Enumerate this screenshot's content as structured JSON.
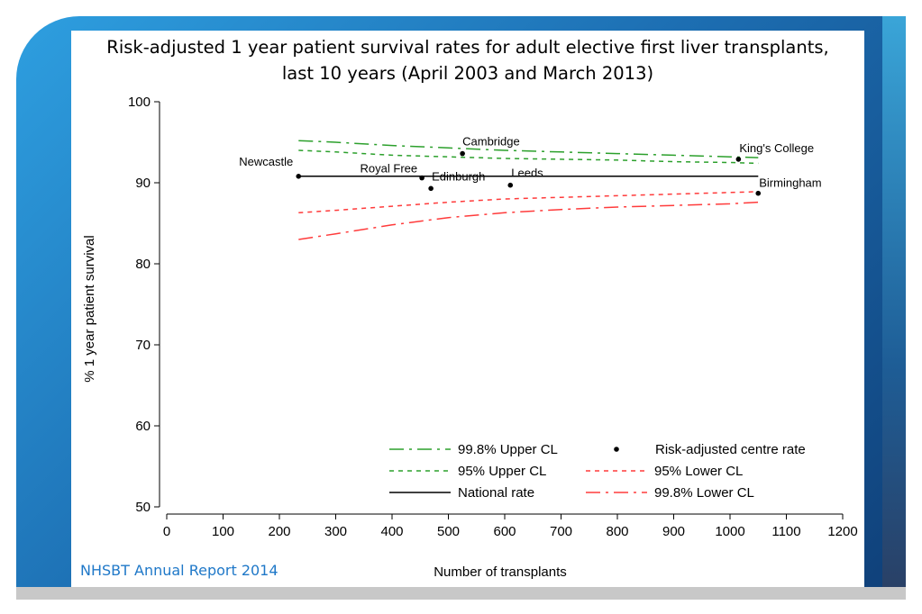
{
  "footer": "NHSBT Annual Report 2014",
  "chart_data": {
    "type": "scatter",
    "title_line1": "Risk-adjusted 1 year patient survival rates for adult elective first liver transplants,",
    "title_line2": "last 10 years (April 2003 and March 2013)",
    "xlabel": "Number of transplants",
    "ylabel": "% 1 year patient survival",
    "xlim": [
      0,
      1200
    ],
    "ylim": [
      50,
      100
    ],
    "xticks": [
      0,
      100,
      200,
      300,
      400,
      500,
      600,
      700,
      800,
      900,
      1000,
      1100,
      1200
    ],
    "yticks": [
      50,
      60,
      70,
      80,
      90,
      100
    ],
    "grid": false,
    "legend_position": "bottom-right",
    "points": [
      {
        "label": "Newcastle",
        "x": 234,
        "y": 90.8
      },
      {
        "label": "Royal Free",
        "x": 453,
        "y": 90.6
      },
      {
        "label": "Edinburgh",
        "x": 469,
        "y": 89.3
      },
      {
        "label": "Cambridge",
        "x": 525,
        "y": 93.6
      },
      {
        "label": "Leeds",
        "x": 610,
        "y": 89.7
      },
      {
        "label": "King's College",
        "x": 1015,
        "y": 92.9
      },
      {
        "label": "Birmingham",
        "x": 1050,
        "y": 88.7
      }
    ],
    "series": [
      {
        "name": "99.8% Upper CL",
        "color": "#2ca02c",
        "dash": "dashdot",
        "x": [
          234,
          300,
          400,
          500,
          600,
          700,
          800,
          900,
          1000,
          1050
        ],
        "y": [
          95.2,
          95.0,
          94.6,
          94.3,
          94.0,
          93.8,
          93.6,
          93.4,
          93.2,
          93.1
        ]
      },
      {
        "name": "95% Upper CL",
        "color": "#2ca02c",
        "dash": "dash",
        "x": [
          234,
          300,
          400,
          500,
          600,
          700,
          800,
          900,
          1000,
          1050
        ],
        "y": [
          94.0,
          93.8,
          93.4,
          93.2,
          93.0,
          92.9,
          92.8,
          92.6,
          92.5,
          92.4
        ]
      },
      {
        "name": "National rate",
        "color": "#000000",
        "dash": "solid",
        "x": [
          234,
          1050
        ],
        "y": [
          90.8,
          90.8
        ]
      },
      {
        "name": "95% Lower CL",
        "color": "#ff3b3b",
        "dash": "dash",
        "x": [
          234,
          300,
          400,
          500,
          600,
          700,
          800,
          900,
          1000,
          1050
        ],
        "y": [
          86.3,
          86.6,
          87.1,
          87.6,
          88.0,
          88.2,
          88.4,
          88.6,
          88.8,
          88.9
        ]
      },
      {
        "name": "99.8% Lower CL",
        "color": "#ff3b3b",
        "dash": "dashdot",
        "x": [
          234,
          300,
          400,
          500,
          600,
          700,
          800,
          900,
          1000,
          1050
        ],
        "y": [
          83.0,
          83.7,
          84.8,
          85.7,
          86.3,
          86.7,
          87.0,
          87.2,
          87.4,
          87.6
        ]
      }
    ],
    "legend_point_label": "Risk-adjusted centre rate"
  }
}
